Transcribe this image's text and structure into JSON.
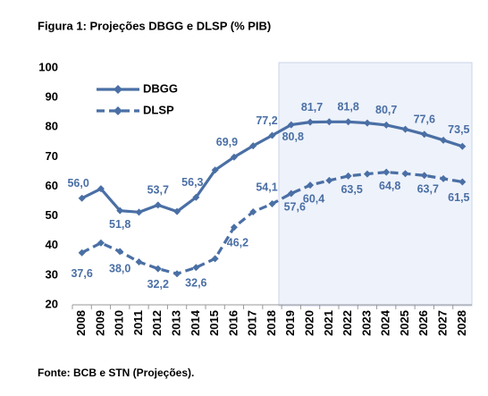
{
  "chart_data": {
    "type": "line",
    "title": "Figura 1: Projeções DBGG e DLSP (% PIB)",
    "source": "Fonte: BCB e STN (Projeções).",
    "categories": [
      "2008",
      "2009",
      "2010",
      "2011",
      "2012",
      "2013",
      "2014",
      "2015",
      "2016",
      "2017",
      "2018",
      "2019",
      "2020",
      "2021",
      "2022",
      "2023",
      "2024",
      "2025",
      "2026",
      "2027",
      "2028"
    ],
    "series": [
      {
        "name": "DBGG",
        "color": "#4a6fa5",
        "dash": false,
        "values": [
          56.0,
          59.2,
          51.8,
          51.3,
          53.7,
          51.5,
          56.3,
          65.5,
          69.9,
          73.7,
          77.2,
          80.8,
          81.7,
          81.8,
          81.8,
          81.4,
          80.7,
          79.3,
          77.6,
          75.6,
          73.5
        ],
        "value_labels": [
          "56,0",
          null,
          "51,8",
          null,
          "53,7",
          null,
          "56,3",
          null,
          "69,9",
          null,
          "77,2",
          "80,8",
          "81,7",
          null,
          "81,8",
          null,
          "80,7",
          null,
          "77,6",
          null,
          "73,5"
        ]
      },
      {
        "name": "DLSP",
        "color": "#4a6fa5",
        "dash": true,
        "values": [
          37.6,
          40.9,
          38.0,
          34.5,
          32.2,
          30.5,
          32.6,
          35.6,
          46.2,
          51.4,
          54.1,
          57.6,
          60.4,
          62.0,
          63.5,
          64.2,
          64.8,
          64.3,
          63.7,
          62.6,
          61.5
        ],
        "value_labels": [
          "37,6",
          null,
          "38,0",
          null,
          "32,2",
          null,
          "32,6",
          null,
          "46,2",
          null,
          "54,1",
          "57,6",
          "60,4",
          null,
          "63,5",
          null,
          "64,8",
          null,
          "63,7",
          null,
          "61,5"
        ]
      }
    ],
    "ylim": [
      20,
      100
    ],
    "yticks": [
      20,
      30,
      40,
      50,
      60,
      70,
      80,
      90,
      100
    ],
    "legend": "upper left"
  }
}
